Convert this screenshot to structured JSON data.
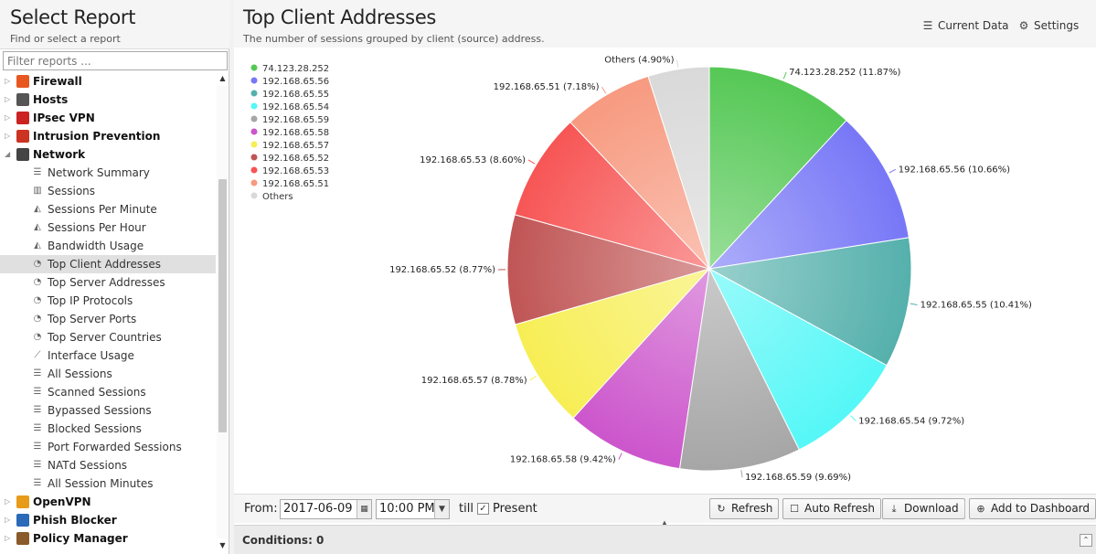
{
  "sidebar": {
    "title": "Select Report",
    "subtitle": "Find or select a report",
    "filter_placeholder": "Filter reports ...",
    "categories_top": [
      {
        "label": "Firewall",
        "icon": "firewall-icon",
        "color": "#e8571f"
      },
      {
        "label": "Hosts",
        "icon": "hosts-icon",
        "color": "#555555"
      },
      {
        "label": "IPsec VPN",
        "icon": "ipsec-vpn-icon",
        "color": "#cc2222"
      },
      {
        "label": "Intrusion Prevention",
        "icon": "intrusion-prevention-icon",
        "color": "#cc3322"
      },
      {
        "label": "Network",
        "icon": "network-icon",
        "color": "#444444"
      }
    ],
    "network_items": [
      {
        "label": "Network Summary",
        "icon": "list-icon"
      },
      {
        "label": "Sessions",
        "icon": "bar-chart-icon"
      },
      {
        "label": "Sessions Per Minute",
        "icon": "area-chart-icon"
      },
      {
        "label": "Sessions Per Hour",
        "icon": "area-chart-icon"
      },
      {
        "label": "Bandwidth Usage",
        "icon": "area-chart-icon"
      },
      {
        "label": "Top Client Addresses",
        "icon": "pie-chart-icon",
        "selected": true
      },
      {
        "label": "Top Server Addresses",
        "icon": "pie-chart-icon"
      },
      {
        "label": "Top IP Protocols",
        "icon": "pie-chart-icon"
      },
      {
        "label": "Top Server Ports",
        "icon": "pie-chart-icon"
      },
      {
        "label": "Top Server Countries",
        "icon": "pie-chart-icon"
      },
      {
        "label": "Interface Usage",
        "icon": "line-chart-icon"
      },
      {
        "label": "All Sessions",
        "icon": "list-icon"
      },
      {
        "label": "Scanned Sessions",
        "icon": "list-icon"
      },
      {
        "label": "Bypassed Sessions",
        "icon": "list-icon"
      },
      {
        "label": "Blocked Sessions",
        "icon": "list-icon"
      },
      {
        "label": "Port Forwarded Sessions",
        "icon": "list-icon"
      },
      {
        "label": "NATd Sessions",
        "icon": "list-icon"
      },
      {
        "label": "All Session Minutes",
        "icon": "list-icon"
      }
    ],
    "categories_bottom": [
      {
        "label": "OpenVPN",
        "icon": "openvpn-icon",
        "color": "#e89a1a"
      },
      {
        "label": "Phish Blocker",
        "icon": "phish-blocker-icon",
        "color": "#2a6ab8"
      },
      {
        "label": "Policy Manager",
        "icon": "policy-manager-icon",
        "color": "#8a5a2a"
      }
    ]
  },
  "report": {
    "title": "Top Client Addresses",
    "subtitle": "The number of sessions grouped by client (source) address.",
    "current_data_label": "Current Data",
    "settings_label": "Settings"
  },
  "chart_data": {
    "type": "pie",
    "legend_position": "top-left",
    "slices": [
      {
        "label": "74.123.28.252",
        "value": 11.87,
        "color": "#55c855"
      },
      {
        "label": "192.168.65.56",
        "value": 10.66,
        "color": "#7777f7"
      },
      {
        "label": "192.168.65.55",
        "value": 10.41,
        "color": "#55b0ac"
      },
      {
        "label": "192.168.65.54",
        "value": 9.72,
        "color": "#55f7f7"
      },
      {
        "label": "192.168.65.59",
        "value": 9.69,
        "color": "#a6a6a6"
      },
      {
        "label": "192.168.65.58",
        "value": 9.42,
        "color": "#cc55cc"
      },
      {
        "label": "192.168.65.57",
        "value": 8.78,
        "color": "#f7ee55"
      },
      {
        "label": "192.168.65.52",
        "value": 8.77,
        "color": "#c05555"
      },
      {
        "label": "192.168.65.53",
        "value": 8.6,
        "color": "#f75555"
      },
      {
        "label": "192.168.65.51",
        "value": 7.18,
        "color": "#f79a80"
      },
      {
        "label": "Others",
        "value": 4.9,
        "color": "#d9d9d9"
      }
    ]
  },
  "toolbar": {
    "from_label": "From:",
    "date_value": "2017-06-09",
    "time_value": "10:00 PM",
    "till_label": "till",
    "present_label": "Present",
    "present_checked": true,
    "refresh_label": "Refresh",
    "auto_refresh_label": "Auto Refresh",
    "download_label": "Download",
    "add_dashboard_label": "Add to Dashboard"
  },
  "conditions": {
    "label": "Conditions: 0"
  }
}
